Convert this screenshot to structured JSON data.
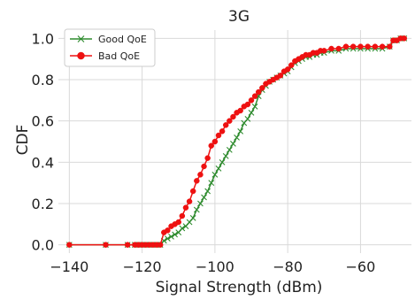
{
  "chart_data": {
    "type": "line",
    "title": "3G",
    "xlabel": "Signal Strength (dBm)",
    "ylabel": "CDF",
    "xlim": [
      -143,
      -46
    ],
    "ylim": [
      -0.04,
      1.04
    ],
    "xticks": [
      -140,
      -120,
      -100,
      -80,
      -60
    ],
    "xtick_labels": [
      "−140",
      "−120",
      "−100",
      "−80",
      "−60"
    ],
    "yticks": [
      0.0,
      0.2,
      0.4,
      0.6,
      0.8,
      1.0
    ],
    "ytick_labels": [
      "0.0",
      "0.2",
      "0.4",
      "0.6",
      "0.8",
      "1.0"
    ],
    "grid": true,
    "legend_position": "top-left",
    "series": [
      {
        "name": "Good QoE",
        "color": "#2e8b2e",
        "marker": "x",
        "x": [
          -140,
          -130,
          -124,
          -122,
          -121,
          -120,
          -119,
          -118,
          -117,
          -116,
          -115,
          -114,
          -113,
          -112,
          -111,
          -110,
          -109,
          -108,
          -107,
          -106,
          -105,
          -104,
          -103,
          -102,
          -101,
          -100,
          -99,
          -98,
          -97,
          -96,
          -95,
          -94,
          -93,
          -92,
          -91,
          -90,
          -89,
          -88,
          -87,
          -86,
          -85,
          -84,
          -83,
          -82,
          -81,
          -80,
          -79,
          -78,
          -77,
          -76,
          -75,
          -74,
          -73,
          -72,
          -71,
          -70,
          -68,
          -66,
          -64,
          -62,
          -60,
          -58,
          -56,
          -54,
          -52,
          -51,
          -50,
          -49,
          -48
        ],
        "y": [
          0.0,
          0.0,
          0.0,
          0.0,
          0.0,
          0.0,
          0.0,
          0.0,
          0.0,
          0.0,
          0.0,
          0.02,
          0.03,
          0.04,
          0.05,
          0.06,
          0.08,
          0.09,
          0.11,
          0.13,
          0.17,
          0.2,
          0.23,
          0.26,
          0.3,
          0.34,
          0.37,
          0.4,
          0.43,
          0.46,
          0.49,
          0.52,
          0.55,
          0.59,
          0.61,
          0.64,
          0.67,
          0.72,
          0.75,
          0.77,
          0.79,
          0.8,
          0.81,
          0.82,
          0.83,
          0.84,
          0.86,
          0.88,
          0.89,
          0.9,
          0.91,
          0.91,
          0.92,
          0.92,
          0.93,
          0.93,
          0.94,
          0.94,
          0.95,
          0.95,
          0.95,
          0.95,
          0.95,
          0.95,
          0.96,
          0.99,
          0.99,
          1.0,
          1.0
        ]
      },
      {
        "name": "Bad QoE",
        "color": "#ee1111",
        "marker": "o",
        "x": [
          -140,
          -130,
          -124,
          -122,
          -121,
          -120,
          -119,
          -118,
          -117,
          -116,
          -115,
          -114,
          -113,
          -112,
          -111,
          -110,
          -109,
          -108,
          -107,
          -106,
          -105,
          -104,
          -103,
          -102,
          -101,
          -100,
          -99,
          -98,
          -97,
          -96,
          -95,
          -94,
          -93,
          -92,
          -91,
          -90,
          -89,
          -88,
          -87,
          -86,
          -85,
          -84,
          -83,
          -82,
          -81,
          -80,
          -79,
          -78,
          -77,
          -76,
          -75,
          -74,
          -73,
          -72,
          -71,
          -70,
          -68,
          -66,
          -64,
          -62,
          -60,
          -58,
          -56,
          -54,
          -52,
          -51,
          -50,
          -49,
          -48
        ],
        "y": [
          0.0,
          0.0,
          0.0,
          0.0,
          0.0,
          0.0,
          0.0,
          0.0,
          0.0,
          0.0,
          0.0,
          0.06,
          0.07,
          0.09,
          0.1,
          0.11,
          0.14,
          0.18,
          0.21,
          0.26,
          0.31,
          0.34,
          0.38,
          0.42,
          0.48,
          0.5,
          0.53,
          0.55,
          0.58,
          0.6,
          0.62,
          0.64,
          0.65,
          0.67,
          0.68,
          0.7,
          0.72,
          0.74,
          0.76,
          0.78,
          0.79,
          0.8,
          0.81,
          0.82,
          0.84,
          0.85,
          0.87,
          0.89,
          0.9,
          0.91,
          0.92,
          0.92,
          0.93,
          0.93,
          0.94,
          0.94,
          0.95,
          0.95,
          0.96,
          0.96,
          0.96,
          0.96,
          0.96,
          0.96,
          0.96,
          0.99,
          0.99,
          1.0,
          1.0
        ]
      }
    ]
  }
}
